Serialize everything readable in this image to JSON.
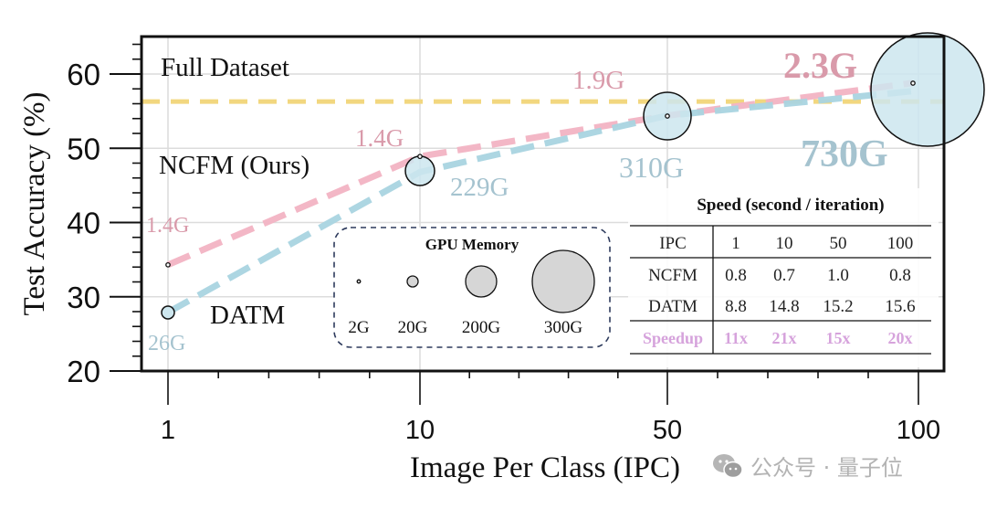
{
  "chart_data": {
    "type": "scatter",
    "title": "",
    "xlabel": "Image Per Class (IPC)",
    "ylabel": "Test Accuracy (%)",
    "x_categories": [
      "1",
      "10",
      "50",
      "100"
    ],
    "yticks": [
      20,
      30,
      40,
      50,
      60
    ],
    "ylim": [
      20,
      65
    ],
    "grid": true,
    "full_dataset": {
      "label": "Full Dataset",
      "value": 56.3,
      "color": "#f2d77f"
    },
    "series": [
      {
        "name": "NCFM (Ours)",
        "color": "#f2b3c3",
        "label_color": "#d99aaa",
        "values": [
          34.3,
          48.9,
          54.4,
          58.8
        ],
        "memory_labels": [
          "1.4G",
          "1.4G",
          "1.9G",
          "2.3G"
        ]
      },
      {
        "name": "DATM",
        "color": "#a9d4e0",
        "label_color": "#a5c3cf",
        "values": [
          27.9,
          46.8,
          54.4,
          57.7
        ],
        "memory_labels": [
          "26G",
          "229G",
          "310G",
          "730G"
        ]
      }
    ],
    "gpu_memory_legend": {
      "title": "GPU Memory",
      "items": [
        "2G",
        "20G",
        "200G",
        "300G"
      ]
    },
    "speed_table": {
      "title": "Speed (second / iteration)",
      "header": [
        "IPC",
        "1",
        "10",
        "50",
        "100"
      ],
      "rows": [
        [
          "NCFM",
          "0.8",
          "0.7",
          "1.0",
          "0.8"
        ],
        [
          "DATM",
          "8.8",
          "14.8",
          "15.2",
          "15.6"
        ]
      ],
      "speedup": [
        "Speedup",
        "11x",
        "21x",
        "15x",
        "20x"
      ],
      "speedup_color": "#d6a3dc"
    }
  },
  "watermark": {
    "text": "公众号 · 量子位"
  }
}
